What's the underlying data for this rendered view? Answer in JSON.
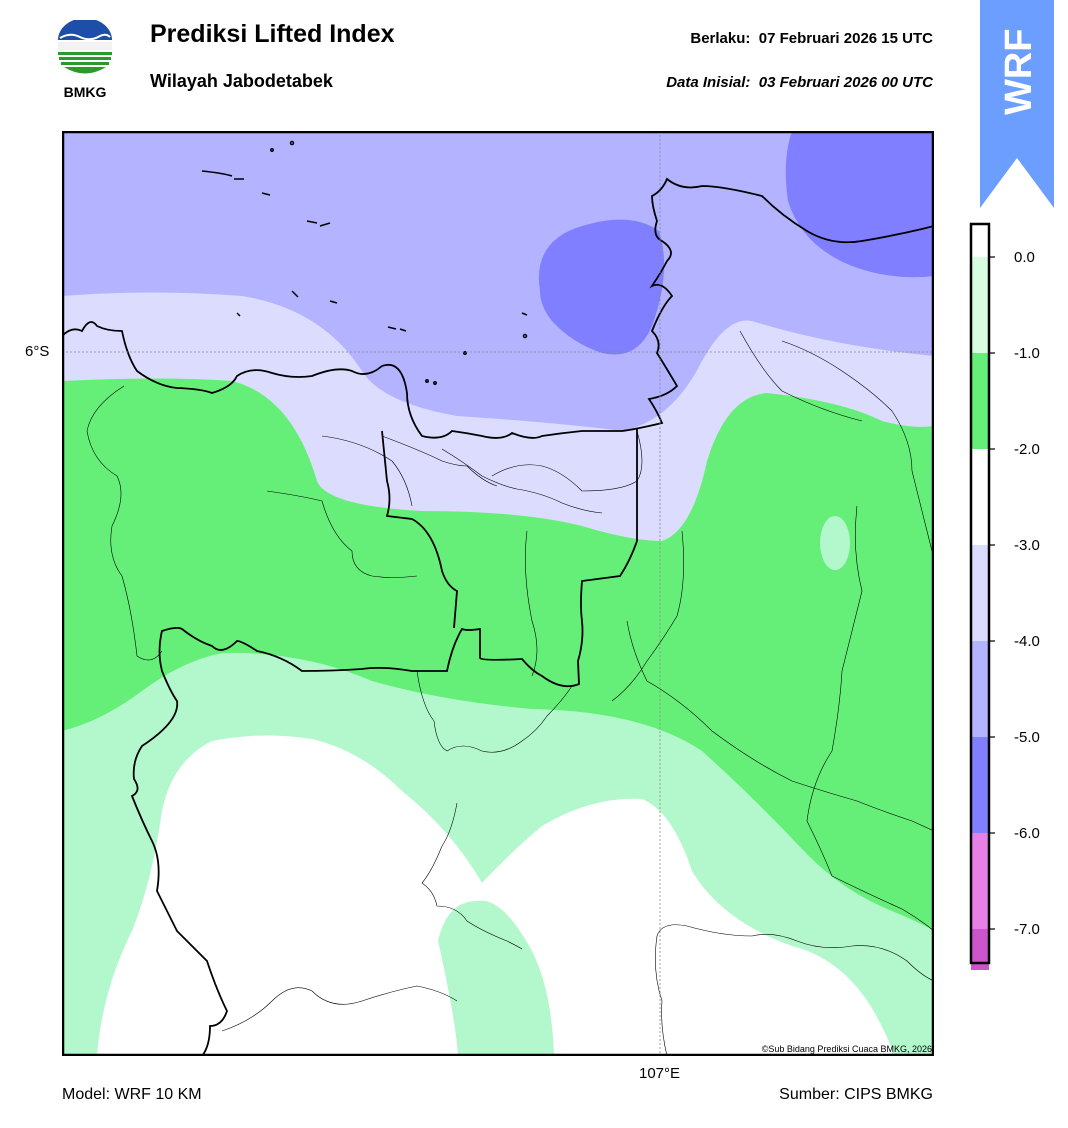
{
  "header": {
    "title": "Prediksi Lifted Index",
    "subtitle": "Wilayah Jabodetabek",
    "valid_label": "Berlaku:",
    "valid_value": "07 Februari 2026 15 UTC",
    "init_label": "Data Inisial:",
    "init_value": "03 Februari 2026 00 UTC"
  },
  "logo": {
    "text": "BMKG",
    "icon": "bmkg-logo"
  },
  "badge": {
    "text": "WRF",
    "color": "#6b9eff"
  },
  "map": {
    "lat_label": "6°S",
    "lon_label": "107°E",
    "copyright": "©Sub Bidang Prediksi Cuaca BMKG, 2026"
  },
  "colorbar": {
    "ticks": [
      "0.0",
      "-1.0",
      "-2.0",
      "-3.0",
      "-4.0",
      "-5.0",
      "-6.0",
      "-7.0"
    ],
    "bins": [
      {
        "color": "#d7fde0"
      },
      {
        "color": "#66ef78"
      },
      {
        "color": "#ffffff"
      },
      {
        "color": "#dcdcff"
      },
      {
        "color": "#b3b3ff"
      },
      {
        "color": "#7f7fff"
      },
      {
        "color": "#e67fe6"
      },
      {
        "color": "#cc55cc"
      },
      {
        "color": "#aa33aa"
      },
      {
        "color": "#882288"
      }
    ]
  },
  "footer": {
    "model": "Model: WRF 10 KM",
    "source": "Sumber: CIPS BMKG"
  }
}
